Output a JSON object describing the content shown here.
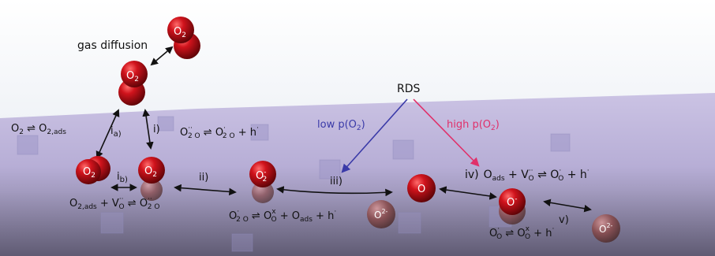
{
  "colors": {
    "sky": "#e9eef5",
    "surface_top": "#c7bfe0",
    "surface_bottom": "#8b86a3",
    "low_pO2_arrow": "#3a3aa8",
    "high_pO2_arrow": "#e0306a",
    "atom_red": "#c0121b"
  },
  "labels": {
    "gas_diffusion": "gas diffusion",
    "rds": "RDS",
    "low_p": "low p(O",
    "high_p": "high p(O",
    "p_sub": "2",
    "p_close": ")",
    "step_ia": "i",
    "step_ia_sub": "a)",
    "step_i": "i)",
    "step_ib": "i",
    "step_ib_sub": "b)",
    "step_ii": "ii)",
    "step_iii": "iii)",
    "step_iv": "iv)",
    "step_v": "v)"
  },
  "atoms": {
    "o2": "O",
    "o2_sub": "2",
    "o2_minus_charge": "-",
    "o": "O",
    "o_minus_charge": "-",
    "o_2minus_charge": "2-"
  },
  "equations": {
    "eq_ads": {
      "a": "O",
      "a_sub": "2",
      "arrow": " ⇌ ",
      "b": "O",
      "b_sub": "2,ads"
    },
    "eq_ab": {
      "a": "O",
      "a_sub": "2,ads",
      "plus": " + V",
      "v_sup": "··",
      "v_sub": "O",
      "arrow": " ⇌ ",
      "b": "O",
      "b_sup": "··",
      "b_sub": "2 O"
    },
    "eq_i": {
      "a": "O",
      "a_sup": "··",
      "a_sub": "2 O",
      "arrow": " ⇌ ",
      "b": "O",
      "b_sup": "·",
      "b_sub": "2 O",
      "plus": " + h",
      "h_sup": "·"
    },
    "eq_ii": {
      "a": "O",
      "a_sup": "·",
      "a_sub": "2 O",
      "arrow": " ⇌ ",
      "b": "O",
      "b_sup": "x",
      "b_sub": "O",
      "plus1": " + O",
      "plus1_sub": "ads",
      "plus2": " + h",
      "h_sup": "·"
    },
    "eq_iv": {
      "a": "O",
      "a_sub": "ads",
      "plus": " + V",
      "v_sup": "··",
      "v_sub": "O",
      "arrow": " ⇌ ",
      "b": "O",
      "b_sup": "·",
      "b_sub": "O",
      "plus2": " + h",
      "h_sup": "·"
    },
    "eq_v": {
      "a": "O",
      "a_sup": "·",
      "a_sub": "O",
      "arrow": " ⇌ ",
      "b": "O",
      "b_sup": "x",
      "b_sub": "O",
      "plus": " + h",
      "h_sup": "·"
    }
  }
}
